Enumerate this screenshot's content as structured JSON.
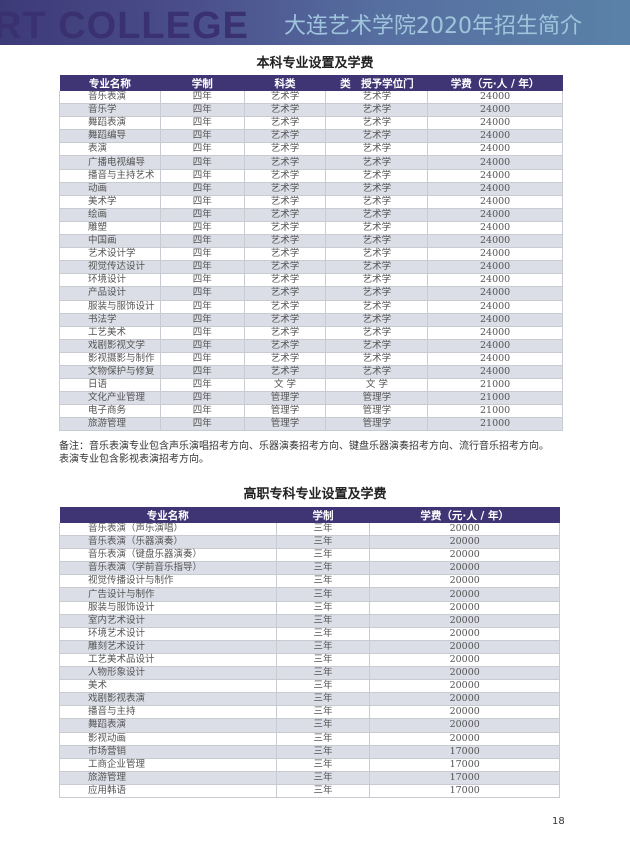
{
  "header": {
    "watermark": "RT COLLEGE",
    "title": "大连艺术学院2020年招生简介"
  },
  "undergrad": {
    "title": "本科专业设置及学费",
    "columns": [
      "专业名称",
      "学制",
      "科类",
      "类　授予学位门",
      "学费（元·人 / 年）"
    ],
    "rows": [
      [
        "音乐表演",
        "四年",
        "艺术学",
        "艺术学",
        "24000"
      ],
      [
        "音乐学",
        "四年",
        "艺术学",
        "艺术学",
        "24000"
      ],
      [
        "舞蹈表演",
        "四年",
        "艺术学",
        "艺术学",
        "24000"
      ],
      [
        "舞蹈编导",
        "四年",
        "艺术学",
        "艺术学",
        "24000"
      ],
      [
        "表演",
        "四年",
        "艺术学",
        "艺术学",
        "24000"
      ],
      [
        "广播电视编导",
        "四年",
        "艺术学",
        "艺术学",
        "24000"
      ],
      [
        "播音与主持艺术",
        "四年",
        "艺术学",
        "艺术学",
        "24000"
      ],
      [
        "动画",
        "四年",
        "艺术学",
        "艺术学",
        "24000"
      ],
      [
        "美术学",
        "四年",
        "艺术学",
        "艺术学",
        "24000"
      ],
      [
        "绘画",
        "四年",
        "艺术学",
        "艺术学",
        "24000"
      ],
      [
        "雕塑",
        "四年",
        "艺术学",
        "艺术学",
        "24000"
      ],
      [
        "中国画",
        "四年",
        "艺术学",
        "艺术学",
        "24000"
      ],
      [
        "艺术设计学",
        "四年",
        "艺术学",
        "艺术学",
        "24000"
      ],
      [
        "视觉传达设计",
        "四年",
        "艺术学",
        "艺术学",
        "24000"
      ],
      [
        "环境设计",
        "四年",
        "艺术学",
        "艺术学",
        "24000"
      ],
      [
        "产品设计",
        "四年",
        "艺术学",
        "艺术学",
        "24000"
      ],
      [
        "服装与服饰设计",
        "四年",
        "艺术学",
        "艺术学",
        "24000"
      ],
      [
        "书法学",
        "四年",
        "艺术学",
        "艺术学",
        "24000"
      ],
      [
        "工艺美术",
        "四年",
        "艺术学",
        "艺术学",
        "24000"
      ],
      [
        "戏剧影视文学",
        "四年",
        "艺术学",
        "艺术学",
        "24000"
      ],
      [
        "影视摄影与制作",
        "四年",
        "艺术学",
        "艺术学",
        "24000"
      ],
      [
        "文物保护与修复",
        "四年",
        "艺术学",
        "艺术学",
        "24000"
      ],
      [
        "日语",
        "四年",
        "文 学",
        "文 学",
        "21000"
      ],
      [
        "文化产业管理",
        "四年",
        "管理学",
        "管理学",
        "21000"
      ],
      [
        "电子商务",
        "四年",
        "管理学",
        "管理学",
        "21000"
      ],
      [
        "旅游管理",
        "四年",
        "管理学",
        "管理学",
        "21000"
      ]
    ]
  },
  "note": {
    "line1": "备注：音乐表演专业包含声乐演唱招考方向、乐器演奏招考方向、键盘乐器演奏招考方向、流行音乐招考方向。",
    "line2": "表演专业包含影视表演招考方向。"
  },
  "vocational": {
    "title": "高职专科专业设置及学费",
    "columns": [
      "专业名称",
      "学制",
      "学费（元·人 / 年）"
    ],
    "rows": [
      [
        "音乐表演（声乐演唱）",
        "三年",
        "20000"
      ],
      [
        "音乐表演（乐器演奏）",
        "三年",
        "20000"
      ],
      [
        "音乐表演（键盘乐器演奏）",
        "三年",
        "20000"
      ],
      [
        "音乐表演（学前音乐指导）",
        "三年",
        "20000"
      ],
      [
        "视觉传播设计与制作",
        "三年",
        "20000"
      ],
      [
        "广告设计与制作",
        "三年",
        "20000"
      ],
      [
        "服装与服饰设计",
        "三年",
        "20000"
      ],
      [
        "室内艺术设计",
        "三年",
        "20000"
      ],
      [
        "环境艺术设计",
        "三年",
        "20000"
      ],
      [
        "雕刻艺术设计",
        "三年",
        "20000"
      ],
      [
        "工艺美术品设计",
        "三年",
        "20000"
      ],
      [
        "人物形象设计",
        "三年",
        "20000"
      ],
      [
        "美术",
        "三年",
        "20000"
      ],
      [
        "戏剧影视表演",
        "三年",
        "20000"
      ],
      [
        "播音与主持",
        "三年",
        "20000"
      ],
      [
        "舞蹈表演",
        "三年",
        "20000"
      ],
      [
        "影视动画",
        "三年",
        "20000"
      ],
      [
        "市场营销",
        "三年",
        "17000"
      ],
      [
        "工商企业管理",
        "三年",
        "17000"
      ],
      [
        "旅游管理",
        "三年",
        "17000"
      ],
      [
        "应用韩语",
        "三年",
        "17000"
      ]
    ]
  },
  "page_number": "18"
}
